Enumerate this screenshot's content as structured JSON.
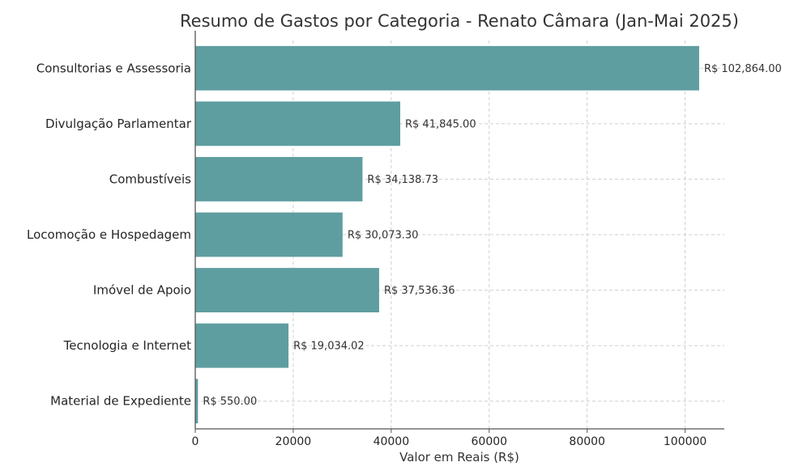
{
  "chart_data": {
    "type": "bar",
    "orientation": "horizontal",
    "title": "Resumo de Gastos por Categoria - Renato Câmara (Jan-Mai 2025)",
    "xlabel": "Valor em Reais (R$)",
    "ylabel": "",
    "categories": [
      "Consultorias e Assessoria",
      "Divulgação Parlamentar",
      "Combustíveis",
      "Locomoção e Hospedagem",
      "Imóvel de Apoio",
      "Tecnologia e Internet",
      "Material de Expediente"
    ],
    "values": [
      102864.0,
      41845.0,
      34138.73,
      30073.3,
      37536.36,
      19034.02,
      550.0
    ],
    "value_labels": [
      "R$ 102,864.00",
      "R$ 41,845.00",
      "R$ 34,138.73",
      "R$ 30,073.30",
      "R$ 37,536.36",
      "R$ 19,034.02",
      "R$ 550.00"
    ],
    "xticks": [
      0,
      20000,
      40000,
      60000,
      80000,
      100000
    ],
    "xtick_labels": [
      "0",
      "20000",
      "40000",
      "60000",
      "80000",
      "100000"
    ],
    "xlim": [
      0,
      108000
    ],
    "grid": true,
    "bar_color": "#5f9ea0"
  }
}
